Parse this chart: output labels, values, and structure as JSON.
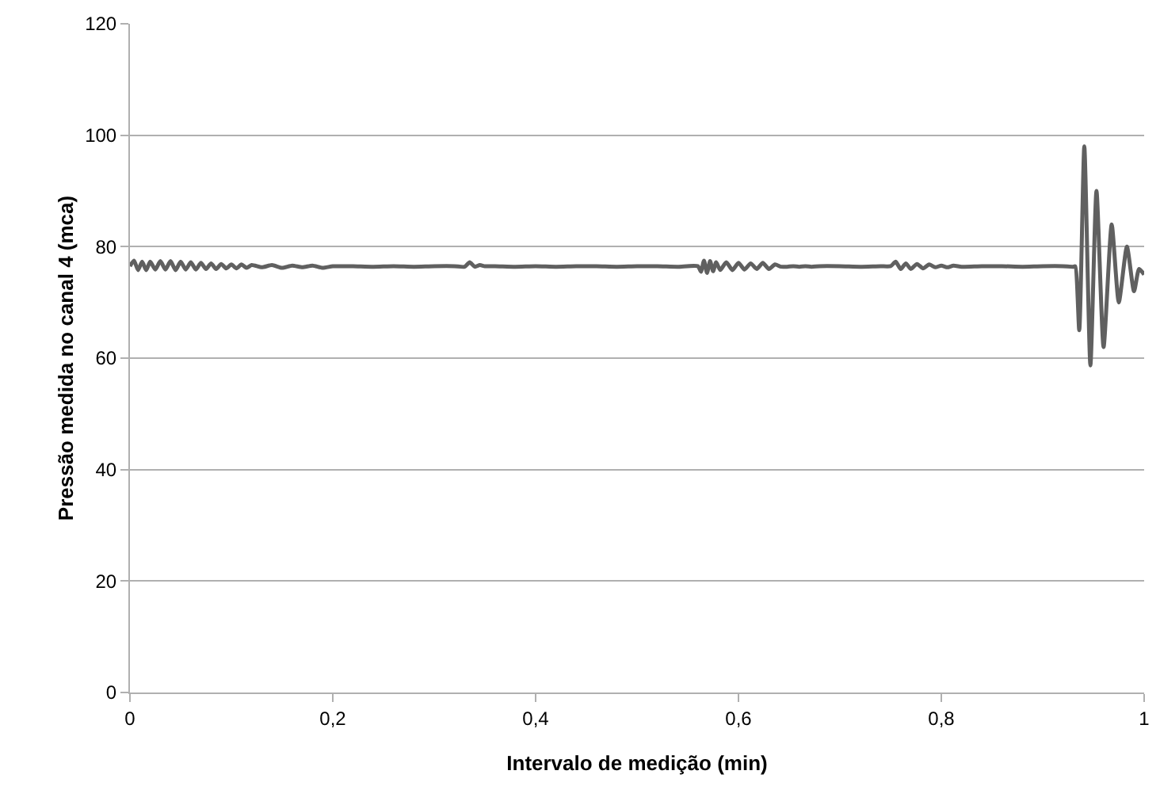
{
  "chart_data": {
    "type": "line",
    "xlabel": "Intervalo de medição (min)",
    "ylabel": "Pressão medida no canal 4 (mca)",
    "xlim": [
      0,
      1
    ],
    "ylim": [
      0,
      120
    ],
    "xticks": [
      0,
      {
        "value": 0.2,
        "label": "0,2"
      },
      {
        "value": 0.4,
        "label": "0,4"
      },
      {
        "value": 0.6,
        "label": "0,6"
      },
      {
        "value": 0.8,
        "label": "0,8"
      },
      1
    ],
    "yticks": [
      0,
      20,
      40,
      60,
      80,
      100,
      120
    ],
    "grid": "y",
    "marker": "none",
    "line_style": "solid",
    "series": [
      {
        "color": "#606060",
        "x": [
          0,
          0.004,
          0.008,
          0.012,
          0.016,
          0.02,
          0.025,
          0.03,
          0.035,
          0.04,
          0.045,
          0.05,
          0.055,
          0.06,
          0.065,
          0.07,
          0.075,
          0.08,
          0.085,
          0.09,
          0.095,
          0.1,
          0.105,
          0.11,
          0.115,
          0.12,
          0.13,
          0.14,
          0.15,
          0.16,
          0.17,
          0.18,
          0.19,
          0.2,
          0.21,
          0.22,
          0.24,
          0.26,
          0.28,
          0.3,
          0.32,
          0.33,
          0.335,
          0.34,
          0.345,
          0.35,
          0.36,
          0.38,
          0.4,
          0.42,
          0.44,
          0.46,
          0.48,
          0.5,
          0.52,
          0.54,
          0.56,
          0.563,
          0.566,
          0.569,
          0.572,
          0.575,
          0.578,
          0.582,
          0.588,
          0.594,
          0.6,
          0.606,
          0.612,
          0.618,
          0.624,
          0.63,
          0.636,
          0.642,
          0.648,
          0.654,
          0.66,
          0.666,
          0.672,
          0.68,
          0.7,
          0.72,
          0.74,
          0.75,
          0.755,
          0.76,
          0.765,
          0.77,
          0.776,
          0.782,
          0.788,
          0.794,
          0.8,
          0.806,
          0.812,
          0.82,
          0.84,
          0.86,
          0.88,
          0.9,
          0.92,
          0.93,
          0.932,
          0.936,
          0.941,
          0.947,
          0.953,
          0.96,
          0.968,
          0.975,
          0.983,
          0.99,
          0.995,
          1
        ],
        "values": [
          76.5,
          77.5,
          75.8,
          77.3,
          75.8,
          77.3,
          75.9,
          77.4,
          75.9,
          77.4,
          75.8,
          77.3,
          75.9,
          77.2,
          75.9,
          77.1,
          76,
          77,
          76,
          76.9,
          76.1,
          76.8,
          76.1,
          76.8,
          76.2,
          76.7,
          76.3,
          76.7,
          76.2,
          76.6,
          76.3,
          76.6,
          76.2,
          76.5,
          76.5,
          76.5,
          76.4,
          76.5,
          76.4,
          76.5,
          76.5,
          76.4,
          77.2,
          76.4,
          76.7,
          76.5,
          76.5,
          76.4,
          76.5,
          76.4,
          76.5,
          76.5,
          76.4,
          76.5,
          76.5,
          76.4,
          76.5,
          75.5,
          77.5,
          75.3,
          77.4,
          75.6,
          77.2,
          75.8,
          77.2,
          75.8,
          77.1,
          75.9,
          77,
          76,
          77.1,
          76,
          76.8,
          76.4,
          76.4,
          76.5,
          76.4,
          76.5,
          76.4,
          76.5,
          76.5,
          76.4,
          76.5,
          76.5,
          77.3,
          76,
          77,
          76,
          76.9,
          76.1,
          76.8,
          76.3,
          76.6,
          76.3,
          76.6,
          76.4,
          76.5,
          76.5,
          76.4,
          76.5,
          76.5,
          76.4,
          76.5,
          65,
          98,
          58.7,
          90,
          62,
          84,
          70,
          80,
          72,
          76,
          75
        ]
      }
    ]
  }
}
